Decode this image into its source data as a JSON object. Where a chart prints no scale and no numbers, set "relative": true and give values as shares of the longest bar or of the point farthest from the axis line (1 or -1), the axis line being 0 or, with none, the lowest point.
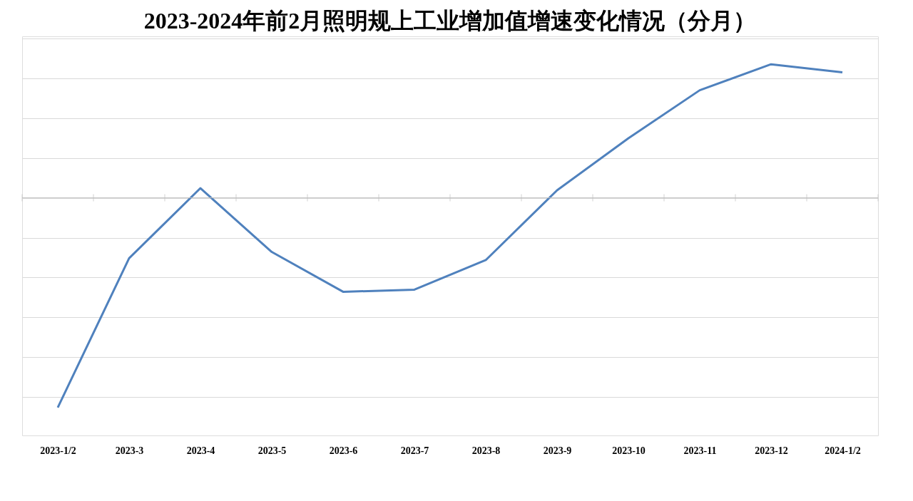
{
  "chart_data": {
    "type": "line",
    "title": "2023-2024年前2月照明规上工业增加值增速变化情况（分月）",
    "categories": [
      "2023-1/2",
      "2023-3",
      "2023-4",
      "2023-5",
      "2023-6",
      "2023-7",
      "2023-8",
      "2023-9",
      "2023-10",
      "2023-11",
      "2023-12",
      "2024-1/2"
    ],
    "series": [
      {
        "color": "#4f81bd",
        "values": [
          -1,
          -0.288,
          0.046,
          -0.258,
          -0.448,
          -0.438,
          -0.297,
          0.036,
          0.284,
          0.513,
          0.637,
          0.598
        ]
      }
    ],
    "relative": true,
    "grid": "y",
    "marker": "none",
    "line_style": "solid",
    "tick_labels": "x"
  }
}
